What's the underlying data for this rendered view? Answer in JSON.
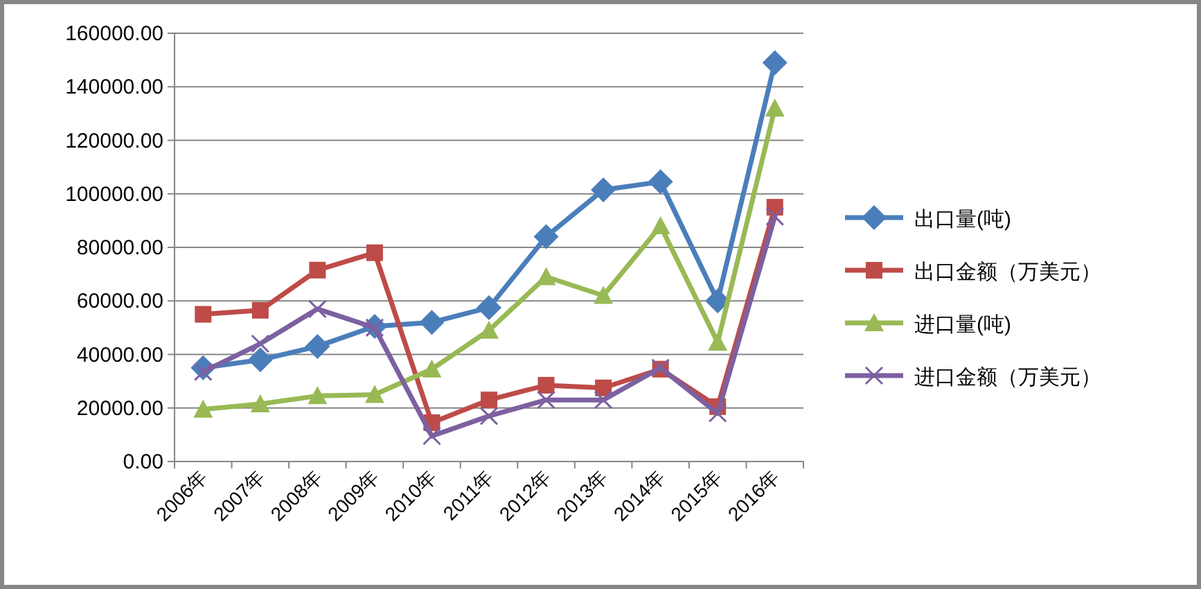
{
  "chart_data": {
    "type": "line",
    "categories": [
      "2006年",
      "2007年",
      "2008年",
      "2009年",
      "2010年",
      "2011年",
      "2012年",
      "2013年",
      "2014年",
      "2015年",
      "2016年"
    ],
    "series": [
      {
        "name": "出口量(吨)",
        "color": "#4a7ebb",
        "marker": "diamond",
        "values": [
          35000,
          38000,
          43000,
          50500,
          52000,
          57500,
          84000,
          101500,
          104500,
          60000,
          149000
        ]
      },
      {
        "name": "出口金额（万美元）",
        "color": "#be4b48",
        "marker": "square",
        "values": [
          55000,
          56500,
          71500,
          78000,
          14500,
          23000,
          28500,
          27500,
          34500,
          20500,
          95000
        ]
      },
      {
        "name": "进口量(吨)",
        "color": "#98b954",
        "marker": "triangle",
        "values": [
          19500,
          21500,
          24500,
          25000,
          34500,
          49000,
          69000,
          62000,
          88000,
          44500,
          132000
        ]
      },
      {
        "name": "进口金额（万美元）",
        "color": "#7d60a0",
        "marker": "cross",
        "values": [
          33500,
          44000,
          57000,
          50000,
          9500,
          17000,
          23000,
          23000,
          35000,
          18000,
          91500
        ]
      }
    ],
    "ylim": [
      0,
      160000
    ],
    "yticks": [
      {
        "value": 0,
        "label": "0.00"
      },
      {
        "value": 20000,
        "label": "20000.00"
      },
      {
        "value": 40000,
        "label": "40000.00"
      },
      {
        "value": 60000,
        "label": "60000.00"
      },
      {
        "value": 80000,
        "label": "80000.00"
      },
      {
        "value": 100000,
        "label": "100000.00"
      },
      {
        "value": 120000,
        "label": "120000.00"
      },
      {
        "value": 140000,
        "label": "140000.00"
      },
      {
        "value": 160000,
        "label": "160000.00"
      }
    ],
    "grid": "y",
    "legend": "right"
  }
}
